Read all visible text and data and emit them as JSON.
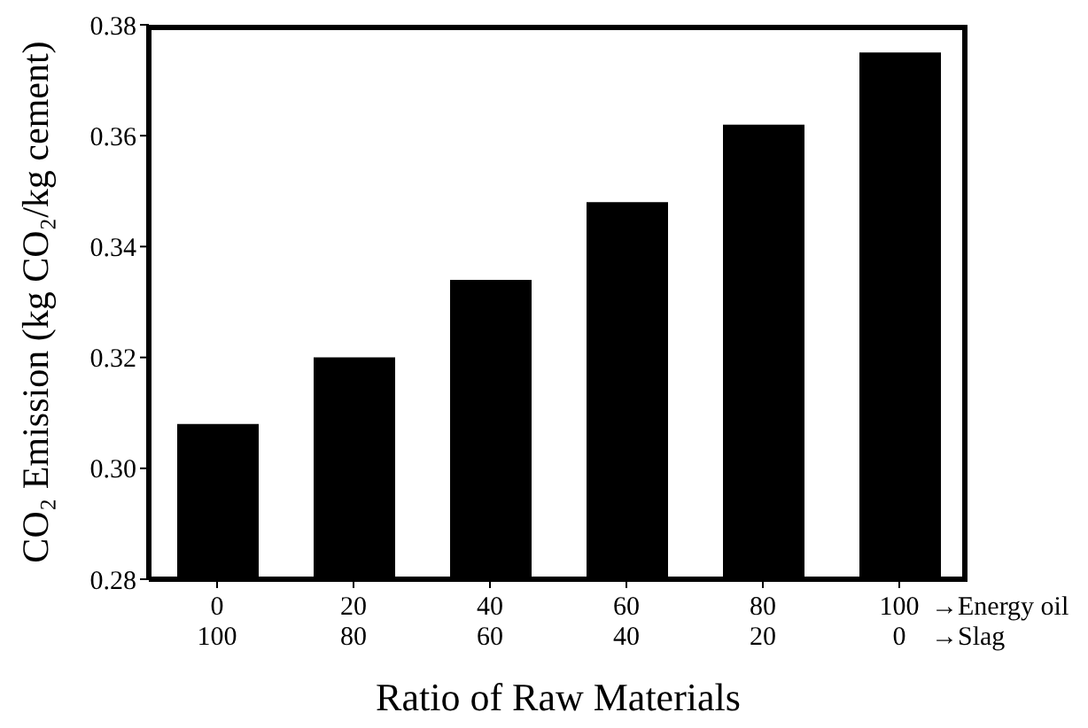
{
  "chart_data": {
    "type": "bar",
    "xlabel": "Ratio of Raw Materials",
    "ylabel": "CO₂ Emission (kg CO₂/kg cement)",
    "categories": [
      "0\n100",
      "20\n80",
      "40\n60",
      "60\n40",
      "80\n20",
      "100\n0"
    ],
    "values": [
      0.308,
      0.32,
      0.334,
      0.348,
      0.362,
      0.375
    ],
    "color": "#000000",
    "ylim": [
      0.28,
      0.38
    ],
    "yticks": [
      0.28,
      {
        "value": 0.3,
        "label": "0.30"
      },
      0.32,
      0.34,
      0.36,
      0.38
    ],
    "annotations": [
      "→Energy oil",
      "→Slag"
    ],
    "grid": false,
    "legend": false
  }
}
